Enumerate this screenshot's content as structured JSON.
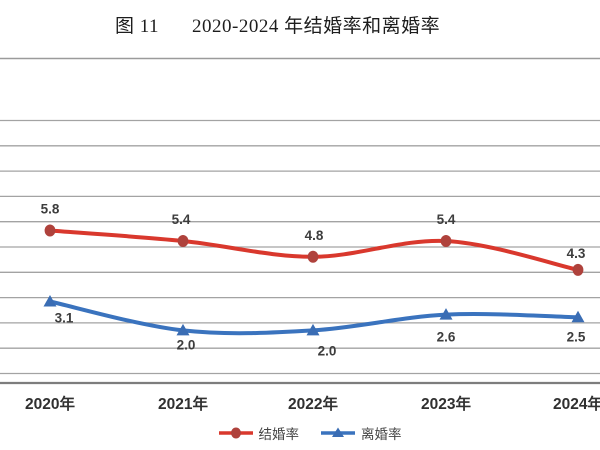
{
  "figure": {
    "label": "图 11",
    "title": "2020-2024 年结婚率和离婚率"
  },
  "chart_data": {
    "type": "line",
    "title": "图 11 2020-2024 年结婚率和离婚率",
    "categories": [
      "2020年",
      "2021年",
      "2022年",
      "2023年",
      "2024年"
    ],
    "series": [
      {
        "name": "结婚率",
        "values": [
          5.8,
          5.4,
          4.8,
          5.4,
          4.3
        ],
        "color": "#d9382d",
        "marker_color": "#af423c",
        "marker": "circle",
        "labels_position": "above"
      },
      {
        "name": "离婚率",
        "values": [
          3.1,
          2.0,
          2.0,
          2.6,
          2.5
        ],
        "color": "#3a73be",
        "marker_color": "#3a6db4",
        "marker": "triangle",
        "labels_position": "below"
      }
    ],
    "label_format": "one-decimal",
    "smoothed_lines": true,
    "grid": "horizontal",
    "y_axis_labels_visible": false,
    "legend_position": "bottom",
    "xlabel": "",
    "ylabel": ""
  },
  "colors": {
    "gridline": "#a3a3a3",
    "axis_line": "#7d7d7d",
    "plot_top_border": "#9b9b9b",
    "data_label_text": "#3d3d3d",
    "x_axis_label_text": "#303030"
  }
}
